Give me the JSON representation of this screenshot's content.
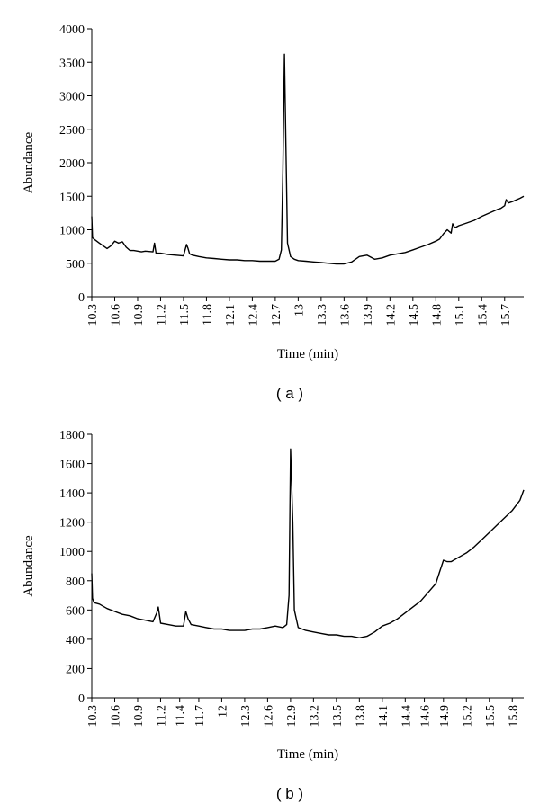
{
  "chart_data": [
    {
      "type": "line",
      "panel_label": "( a )",
      "xlabel": "Time (min)",
      "ylabel": "Abundance",
      "ylim": [
        0,
        4000
      ],
      "yticks": [
        0,
        500,
        1000,
        1500,
        2000,
        2500,
        3000,
        3500,
        4000
      ],
      "xlim": [
        10.3,
        15.95
      ],
      "xtick_labels": [
        "10.3",
        "10.6",
        "10.9",
        "11.2",
        "11.5",
        "11.8",
        "12.1",
        "12.4",
        "12.7",
        "13",
        "13.3",
        "13.6",
        "13.9",
        "14.2",
        "14.5",
        "14.8",
        "15.1",
        "15.4",
        "15.7"
      ],
      "xtick_values": [
        10.3,
        10.6,
        10.9,
        11.2,
        11.5,
        11.8,
        12.1,
        12.4,
        12.7,
        13.0,
        13.3,
        13.6,
        13.9,
        14.2,
        14.5,
        14.8,
        15.1,
        15.4,
        15.7
      ],
      "grid": false,
      "series": [
        {
          "x": [
            10.3,
            10.31,
            10.33,
            10.4,
            10.5,
            10.55,
            10.6,
            10.65,
            10.7,
            10.75,
            10.8,
            10.85,
            10.9,
            10.95,
            11.0,
            11.1,
            11.12,
            11.14,
            11.2,
            11.3,
            11.4,
            11.5,
            11.54,
            11.56,
            11.58,
            11.62,
            11.7,
            11.8,
            11.9,
            12.0,
            12.1,
            12.2,
            12.3,
            12.4,
            12.5,
            12.6,
            12.7,
            12.75,
            12.78,
            12.8,
            12.82,
            12.84,
            12.86,
            12.9,
            12.95,
            13.0,
            13.1,
            13.2,
            13.3,
            13.4,
            13.5,
            13.6,
            13.7,
            13.8,
            13.9,
            14.0,
            14.1,
            14.2,
            14.3,
            14.4,
            14.5,
            14.6,
            14.7,
            14.8,
            14.85,
            14.9,
            14.95,
            15.0,
            15.02,
            15.05,
            15.1,
            15.2,
            15.3,
            15.4,
            15.5,
            15.6,
            15.65,
            15.7,
            15.72,
            15.75,
            15.8,
            15.9,
            15.95
          ],
          "y": [
            1200,
            880,
            860,
            800,
            720,
            760,
            830,
            800,
            820,
            740,
            690,
            690,
            680,
            670,
            680,
            670,
            800,
            650,
            650,
            630,
            620,
            610,
            780,
            720,
            640,
            620,
            600,
            580,
            570,
            560,
            550,
            550,
            540,
            540,
            530,
            530,
            530,
            560,
            700,
            1900,
            3620,
            2200,
            800,
            600,
            560,
            540,
            530,
            520,
            510,
            500,
            490,
            490,
            520,
            600,
            620,
            560,
            580,
            620,
            640,
            660,
            700,
            740,
            780,
            830,
            860,
            940,
            1000,
            950,
            1090,
            1030,
            1060,
            1100,
            1140,
            1200,
            1250,
            1300,
            1320,
            1360,
            1450,
            1400,
            1420,
            1470,
            1500
          ]
        }
      ]
    },
    {
      "type": "line",
      "panel_label": "( b )",
      "xlabel": "Time (min)",
      "ylabel": "Abundance",
      "ylim": [
        0,
        1800
      ],
      "yticks": [
        0,
        200,
        400,
        600,
        800,
        1000,
        1200,
        1400,
        1600,
        1800
      ],
      "xlim": [
        10.3,
        15.95
      ],
      "xtick_labels": [
        "10.3",
        "10.6",
        "10.9",
        "11.2",
        "11.4",
        "11.7",
        "12",
        "12.3",
        "12.6",
        "12.9",
        "13.2",
        "13.5",
        "13.8",
        "14.1",
        "14.4",
        "14.6",
        "14.9",
        "15.2",
        "15.5",
        "15.8"
      ],
      "xtick_values": [
        10.3,
        10.6,
        10.9,
        11.2,
        11.45,
        11.7,
        12.0,
        12.3,
        12.6,
        12.9,
        13.2,
        13.5,
        13.8,
        14.1,
        14.4,
        14.65,
        14.9,
        15.2,
        15.5,
        15.8
      ],
      "grid": false,
      "series": [
        {
          "x": [
            10.3,
            10.31,
            10.33,
            10.4,
            10.5,
            10.6,
            10.7,
            10.8,
            10.9,
            11.0,
            11.1,
            11.15,
            11.17,
            11.2,
            11.3,
            11.4,
            11.5,
            11.53,
            11.56,
            11.6,
            11.7,
            11.8,
            11.9,
            12.0,
            12.1,
            12.2,
            12.3,
            12.4,
            12.5,
            12.6,
            12.7,
            12.8,
            12.85,
            12.88,
            12.9,
            12.93,
            12.95,
            13.0,
            13.1,
            13.2,
            13.3,
            13.4,
            13.5,
            13.6,
            13.7,
            13.8,
            13.9,
            14.0,
            14.1,
            14.2,
            14.3,
            14.4,
            14.5,
            14.6,
            14.7,
            14.8,
            14.85,
            14.9,
            14.95,
            15.0,
            15.1,
            15.2,
            15.3,
            15.4,
            15.5,
            15.6,
            15.7,
            15.8,
            15.9,
            15.95
          ],
          "y": [
            850,
            680,
            650,
            640,
            610,
            590,
            570,
            560,
            540,
            530,
            520,
            580,
            620,
            510,
            500,
            490,
            490,
            590,
            540,
            500,
            490,
            480,
            470,
            470,
            460,
            460,
            460,
            470,
            470,
            480,
            490,
            480,
            500,
            700,
            1700,
            1200,
            600,
            480,
            460,
            450,
            440,
            430,
            430,
            420,
            420,
            410,
            420,
            450,
            490,
            510,
            540,
            580,
            620,
            660,
            720,
            780,
            860,
            940,
            930,
            930,
            960,
            990,
            1030,
            1080,
            1130,
            1180,
            1230,
            1280,
            1350,
            1420
          ]
        }
      ]
    }
  ]
}
